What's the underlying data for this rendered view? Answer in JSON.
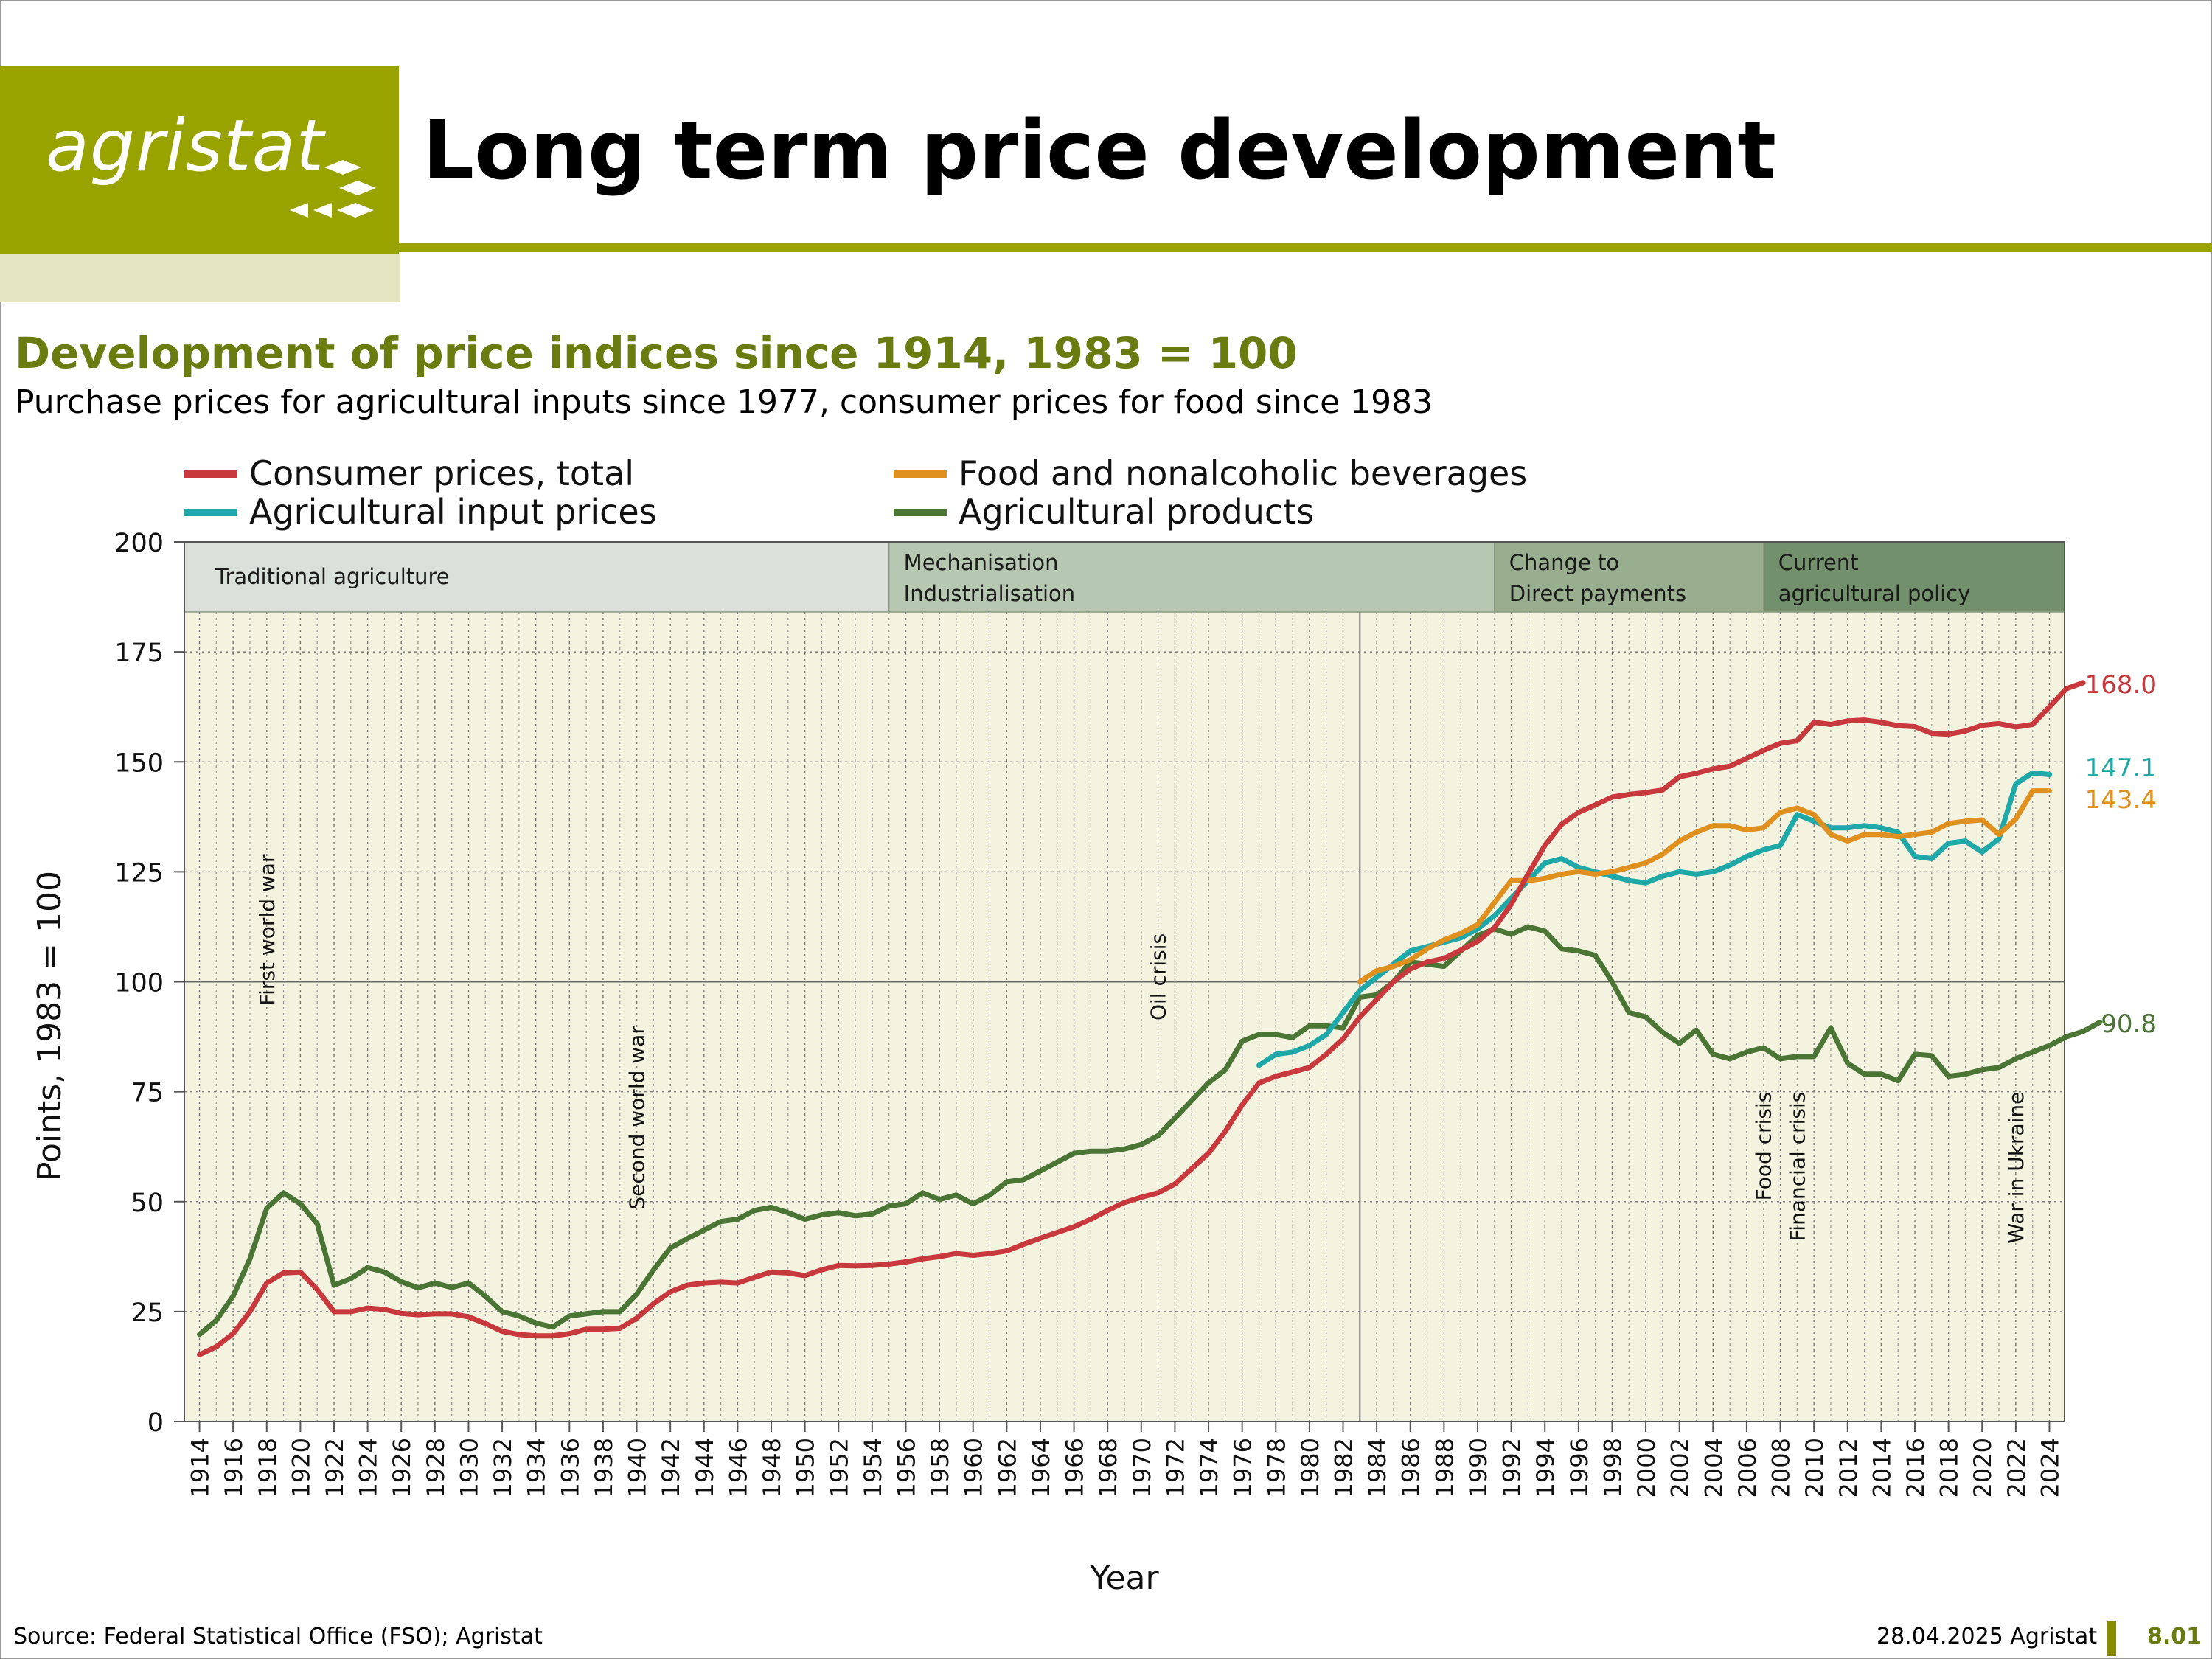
{
  "header": {
    "logo_text": "agristat",
    "title": "Long term price development"
  },
  "subtitle": "Development of price indices since 1914, 1983 = 100",
  "subtitle2": "Purchase prices for agricultural inputs since 1977, consumer prices for food since 1983",
  "footer": {
    "source": "Source: Federal Statistical Office (FSO); Agristat",
    "date": "28.04.2025 Agristat",
    "page": "8.01"
  },
  "colors": {
    "brand": "#99a300",
    "subtitle": "#6a7b10",
    "plot_bg": "#f4f3e0",
    "consumer": "#c8393d",
    "food": "#e0901f",
    "inputs": "#1ea8a8",
    "products": "#4a7535"
  },
  "chart_data": {
    "type": "line",
    "ylabel": "Points, 1983 = 100",
    "xlabel": "Year",
    "ylim": [
      0,
      200
    ],
    "xlim": [
      1914,
      2024
    ],
    "yticks": [
      0,
      25,
      50,
      75,
      100,
      125,
      150,
      175,
      200
    ],
    "xticks": [
      1914,
      1916,
      1918,
      1920,
      1922,
      1924,
      1926,
      1928,
      1930,
      1932,
      1934,
      1936,
      1938,
      1940,
      1942,
      1944,
      1946,
      1948,
      1950,
      1952,
      1954,
      1956,
      1958,
      1960,
      1962,
      1964,
      1966,
      1968,
      1970,
      1972,
      1974,
      1976,
      1978,
      1980,
      1982,
      1984,
      1986,
      1988,
      1990,
      1992,
      1994,
      1996,
      1998,
      2000,
      2002,
      2004,
      2006,
      2008,
      2010,
      2012,
      2014,
      2016,
      2018,
      2020,
      2022,
      2024
    ],
    "grid": true,
    "legend_position": "top",
    "periods": [
      {
        "label_lines": [
          "Traditional agriculture"
        ],
        "start": 1913.1,
        "end": 1955,
        "shade": "#d9e1da"
      },
      {
        "label_lines": [
          "Mechanisation",
          "Industrialisation"
        ],
        "start": 1955,
        "end": 1991,
        "shade": "#b6c8b1"
      },
      {
        "label_lines": [
          "Change to",
          "Direct payments"
        ],
        "start": 1991,
        "end": 2007,
        "shade": "#98ae8f"
      },
      {
        "label_lines": [
          "Current",
          "agricultural policy"
        ],
        "start": 2007,
        "end": 2024.9,
        "shade": "#72906b"
      }
    ],
    "events": [
      {
        "label": "First world war",
        "x": 1918,
        "y_top": 129
      },
      {
        "label": "Second world war",
        "x": 1940,
        "y_top": 90
      },
      {
        "label": "Oil crisis",
        "x": 1971,
        "y_top": 111
      },
      {
        "label": "Food crisis",
        "x": 2007,
        "y_top": 75
      },
      {
        "label": "Financial crisis",
        "x": 2009,
        "y_top": 75
      },
      {
        "label": "War in Ukraine",
        "x": 2022,
        "y_top": 75
      }
    ],
    "series": [
      {
        "name": "Consumer prices, total",
        "key": "consumer",
        "start_year": 1914,
        "end_label": "168.0",
        "values": [
          15.2,
          17,
          20,
          25,
          31.5,
          33.8,
          34,
          30,
          25,
          25,
          25.8,
          25.5,
          24.6,
          24.3,
          24.5,
          24.5,
          23.8,
          22.3,
          20.5,
          19.8,
          19.5,
          19.5,
          20,
          21,
          21,
          21.2,
          23.5,
          26.8,
          29.5,
          31,
          31.5,
          31.7,
          31.5,
          32.8,
          34,
          33.8,
          33.2,
          34.5,
          35.5,
          35.4,
          35.5,
          35.8,
          36.3,
          37,
          37.5,
          38.2,
          37.8,
          38.2,
          38.8,
          40.3,
          41.7,
          43,
          44.3,
          46,
          48,
          49.8,
          51,
          52,
          54,
          57.5,
          61,
          66,
          72,
          77,
          78.5,
          79.5,
          80.5,
          83.5,
          87,
          92,
          96,
          100,
          102.9,
          104.5,
          105.3,
          107.2,
          109.2,
          112.3,
          117.6,
          124.5,
          131,
          135.8,
          138.5,
          140.2,
          142,
          142.6,
          143,
          143.6,
          146.6,
          147.4,
          148.4,
          149,
          150.8,
          152.6,
          154.2,
          154.8,
          159,
          158.5,
          159.3,
          159.5,
          159,
          158.2,
          158,
          156.5,
          156.3,
          157,
          158.3,
          158.7,
          157.9,
          158.5,
          162.5,
          166.6,
          168
        ]
      },
      {
        "name": "Food and nonalcoholic beverages",
        "key": "food",
        "start_year": 1983,
        "end_label": "143.4",
        "values": [
          100,
          102.5,
          103.5,
          105,
          107.5,
          109.5,
          111,
          113,
          118,
          123,
          123,
          123.5,
          124.5,
          125,
          124.5,
          125,
          126,
          127,
          129,
          132,
          134,
          135.5,
          135.5,
          134.5,
          135,
          138.5,
          139.5,
          138,
          133.5,
          132,
          133.5,
          133.5,
          133,
          133.5,
          134,
          136,
          136.5,
          136.8,
          133.5,
          137,
          143.4,
          143.4
        ]
      },
      {
        "name": "Agricultural input prices",
        "key": "inputs",
        "start_year": 1977,
        "end_label": "147.1",
        "values": [
          81,
          83.5,
          84,
          85.5,
          88,
          93,
          98,
          101,
          104,
          107,
          108,
          109,
          110,
          112,
          115,
          119,
          123,
          127,
          128,
          126,
          125,
          124,
          123,
          122.5,
          124,
          125,
          124.5,
          125,
          126.5,
          128.5,
          130,
          131,
          138,
          136.5,
          135,
          135,
          135.5,
          135,
          134,
          128.5,
          128,
          131.5,
          132,
          129.5,
          132.5,
          145,
          147.5,
          147.1
        ]
      },
      {
        "name": "Agricultural products",
        "key": "products",
        "start_year": 1914,
        "end_label": "90.8",
        "values": [
          19.8,
          23,
          28.5,
          37,
          48.5,
          52,
          49.5,
          45,
          31,
          32.5,
          35,
          34,
          31.8,
          30.4,
          31.5,
          30.5,
          31.5,
          28.5,
          25,
          24,
          22.4,
          21.5,
          24,
          24.5,
          25,
          25,
          29,
          34.5,
          39.5,
          41.6,
          43.5,
          45.5,
          46,
          48,
          48.7,
          47.5,
          46,
          47,
          47.5,
          46.8,
          47.2,
          49,
          49.5,
          52,
          50.5,
          51.5,
          49.5,
          51.5,
          54.5,
          55,
          57,
          59,
          61,
          61.5,
          61.5,
          62,
          63,
          65,
          69,
          73,
          77,
          80,
          86.5,
          88,
          88,
          87.3,
          90,
          90,
          89.5,
          96.5,
          97,
          100,
          104.5,
          104,
          103.5,
          107,
          110.5,
          112,
          110.8,
          112.5,
          111.5,
          107.5,
          107,
          106,
          100,
          93,
          92,
          88.5,
          86,
          89,
          83.5,
          82.5,
          84,
          85,
          82.5,
          83,
          83,
          89.5,
          81.5,
          79,
          79,
          77.5,
          83.5,
          83.2,
          78.5,
          79,
          80,
          80.5,
          82.5,
          84,
          85.5,
          87.5,
          88.7,
          90.8
        ]
      }
    ]
  }
}
